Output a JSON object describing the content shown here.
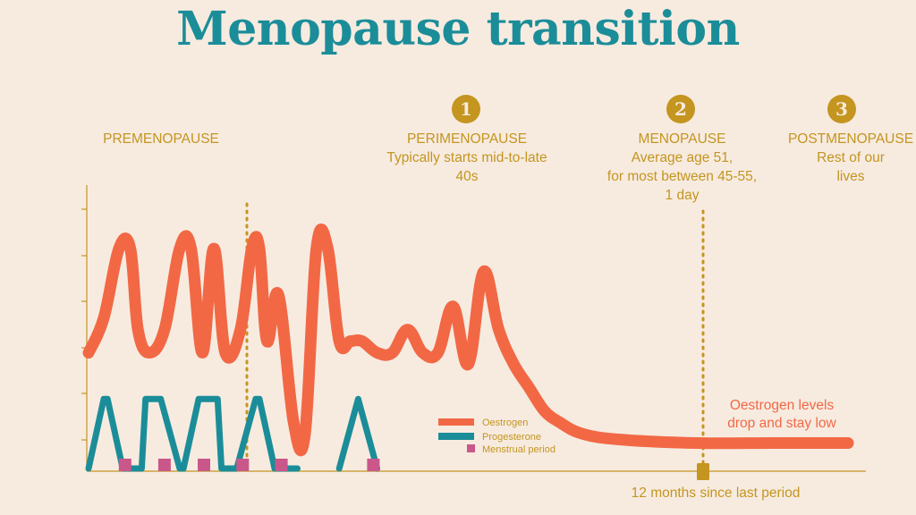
{
  "title": "Menopause transition",
  "phases": [
    {
      "badge": "",
      "name": "PREMENOPAUSE",
      "desc": ""
    },
    {
      "badge": "1",
      "name": "PERIMENOPAUSE",
      "desc": "Typically starts mid-to-late\n40s"
    },
    {
      "badge": "2",
      "name": "MENOPAUSE",
      "desc": "Average age 51,\nfor most between 45-55,\n1 day"
    },
    {
      "badge": "3",
      "name": "POSTMENOPAUSE",
      "desc": "Rest of our\nlives"
    }
  ],
  "annotations": {
    "oestrogen_note": [
      "Oestrogen levels",
      "drop and stay low"
    ],
    "last_period": "12 months since last period"
  },
  "colors": {
    "oestrogen": "#f26845",
    "progesterone": "#1b8d99",
    "menstrual": "#c9578a",
    "accent": "#c4951f",
    "axis": "#c4951f"
  },
  "chart_data": {
    "type": "line",
    "title": "Menopause transition",
    "xlabel": "",
    "ylabel": "",
    "legend": {
      "placement": "bottom-center",
      "entries": [
        "Oestrogen",
        "Progesterone",
        "Menstrual period"
      ]
    },
    "grid": false,
    "series": [
      {
        "name": "Oestrogen",
        "x": [
          0,
          2,
          4,
          5.5,
          6.5,
          8,
          10,
          12,
          13.5,
          15,
          16.5,
          18,
          20,
          21.5,
          22.5,
          23.5,
          25,
          27,
          28.5,
          30,
          31.5,
          33,
          34.5,
          36,
          38,
          40,
          42,
          44,
          46,
          48,
          50,
          52,
          54,
          56,
          58,
          60,
          62,
          65,
          70,
          80,
          90,
          100
        ],
        "values": [
          10,
          13,
          19,
          19,
          12,
          10,
          12,
          19,
          19,
          10,
          19,
          10,
          12,
          19,
          19,
          11,
          15,
          4,
          3,
          19,
          19,
          11,
          11,
          11,
          10,
          10,
          12,
          10,
          10,
          14,
          9,
          17,
          12,
          9,
          7,
          5,
          4,
          3,
          2.5,
          2.2,
          2.2,
          2.2
        ]
      },
      {
        "name": "Progesterone",
        "x": [
          0,
          2,
          2.5,
          4.5,
          7,
          7.5,
          9.5,
          12,
          12.5,
          14.5,
          17,
          17.5,
          19.5,
          22,
          22.5,
          24.5,
          27.5,
          33,
          35.5,
          38
        ],
        "values": [
          0,
          6,
          6,
          0,
          0,
          6,
          6,
          0,
          0,
          6,
          6,
          0,
          0,
          6,
          6,
          0,
          0,
          0,
          6,
          0
        ]
      },
      {
        "name": "Menstrual period",
        "x": [
          4.8,
          10,
          15.2,
          20.3,
          25.4,
          37.5
        ],
        "values": [
          0,
          0,
          0,
          0,
          0,
          0
        ]
      }
    ],
    "annotations": [
      "Oestrogen levels drop and stay low",
      "12 months since last period"
    ]
  }
}
